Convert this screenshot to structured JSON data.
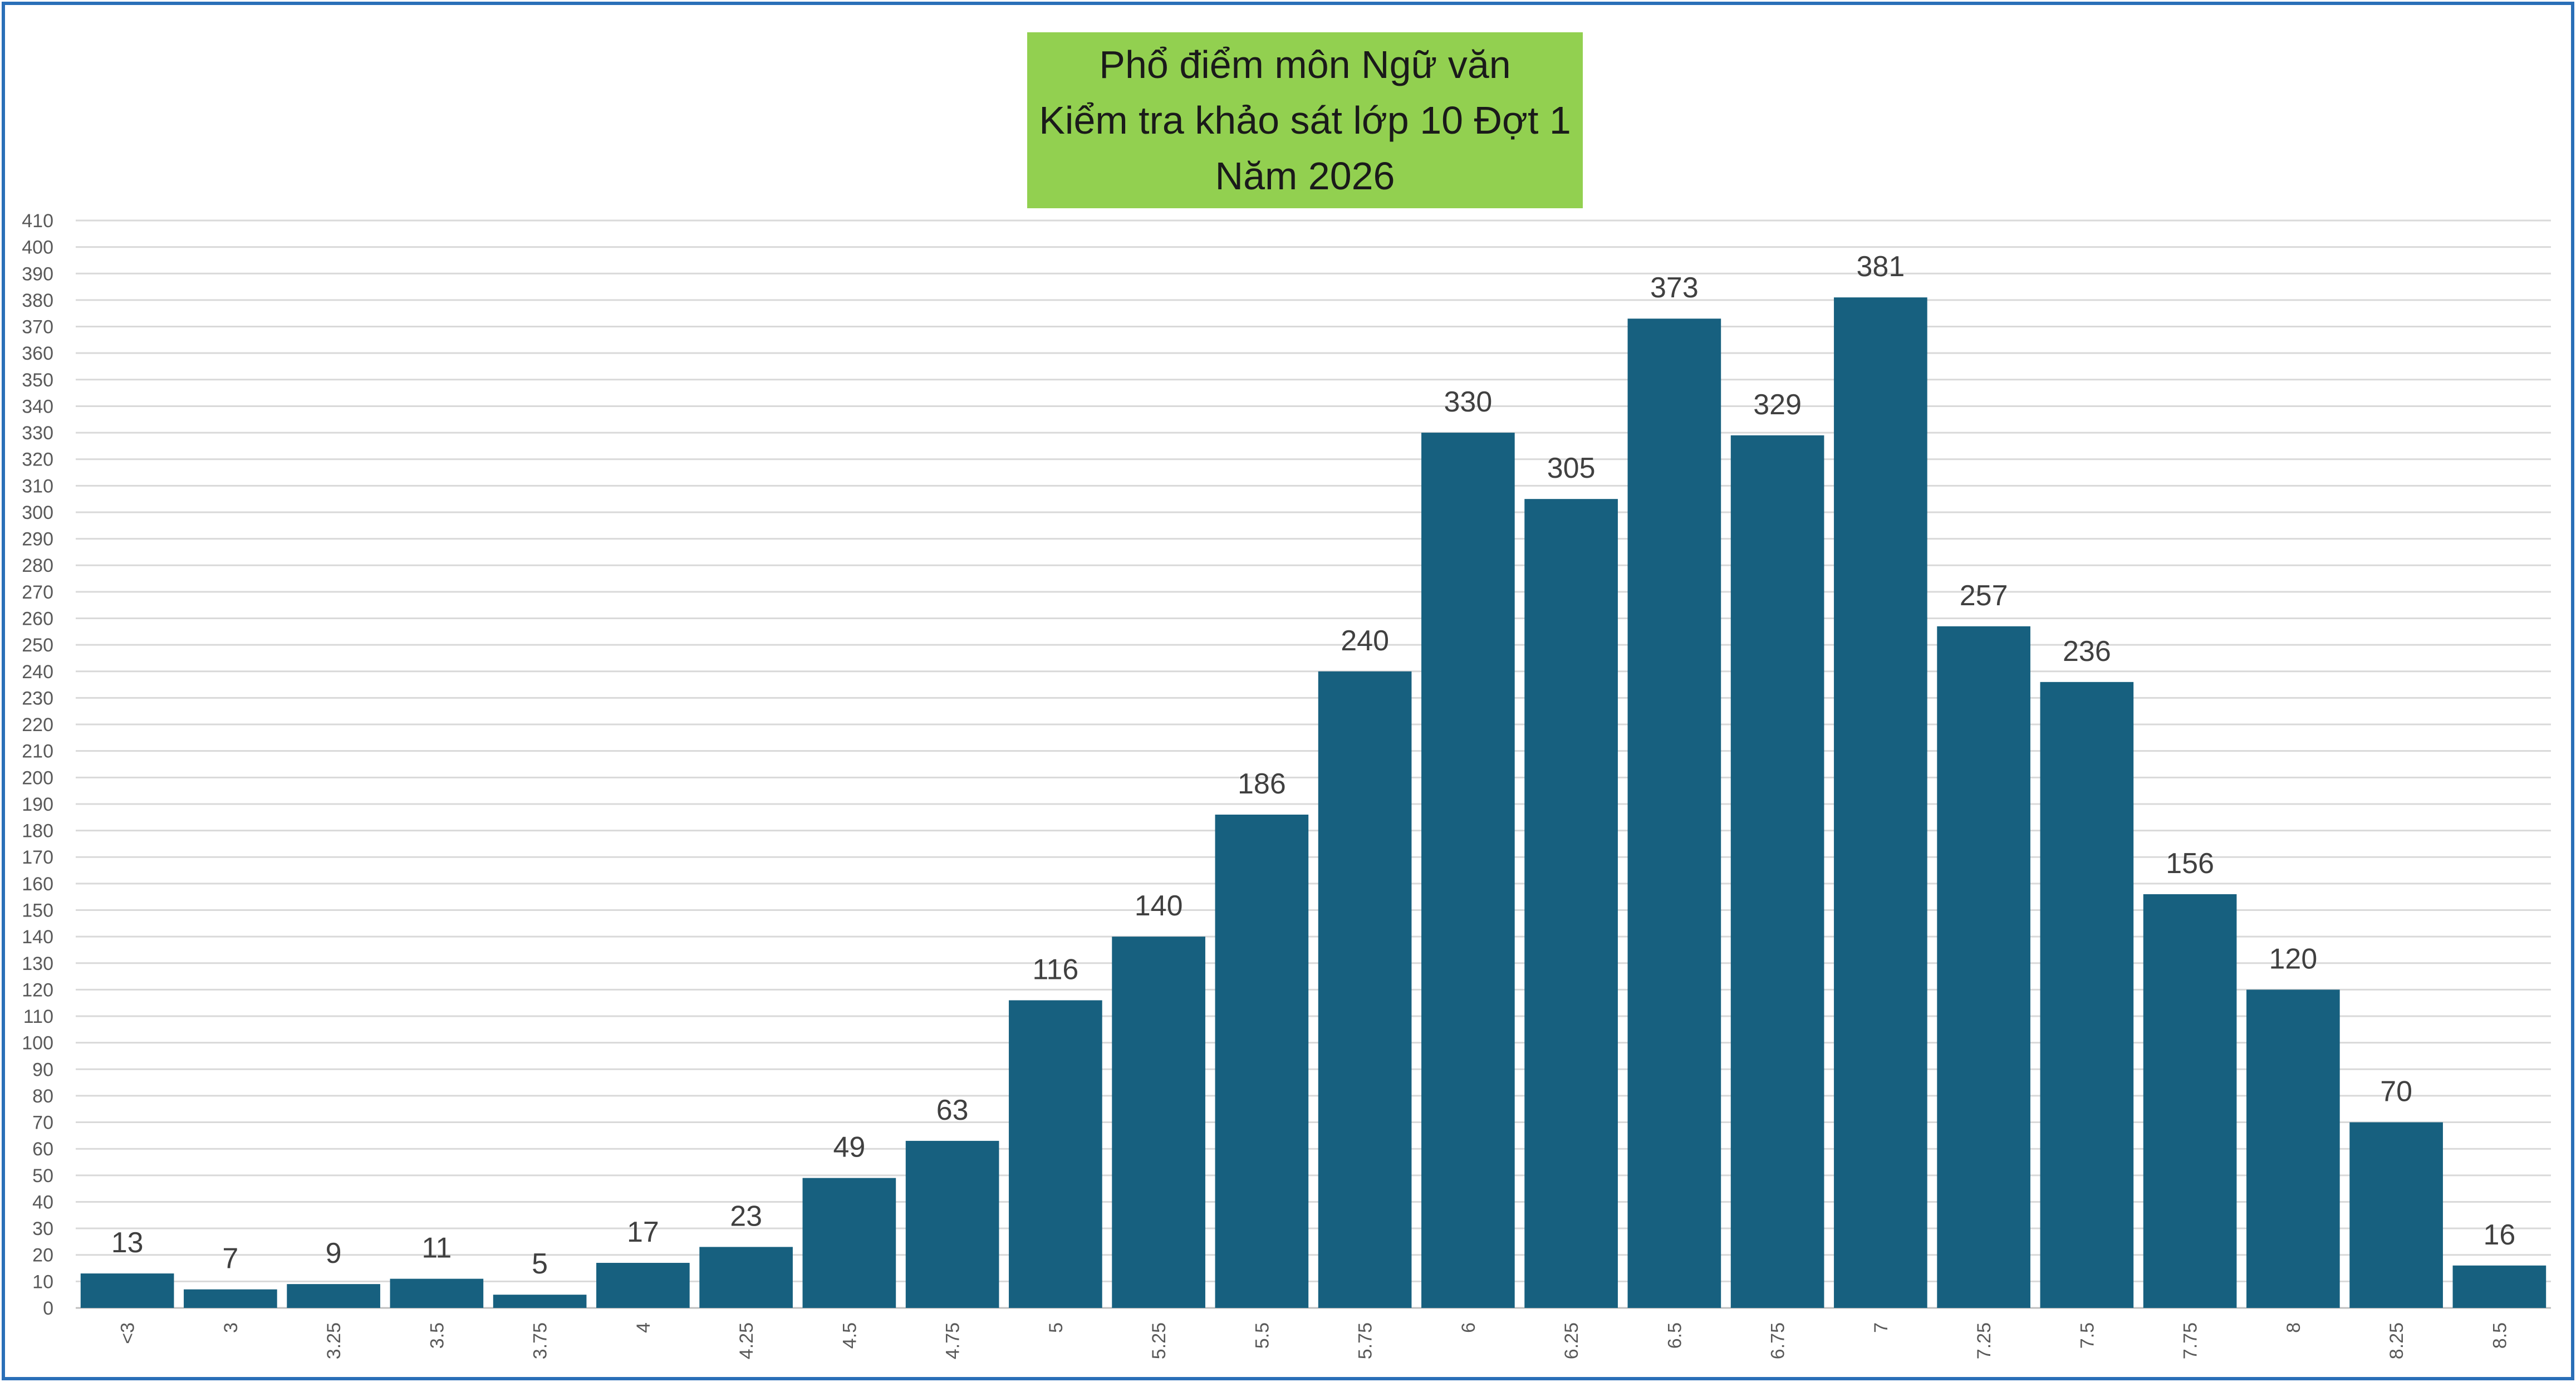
{
  "chart_data": {
    "type": "bar",
    "title_lines": [
      "Phổ điểm môn Ngữ văn",
      "Kiểm tra khảo sát lớp 10 Đợt 1",
      "Năm 2026"
    ],
    "categories": [
      "<3",
      "3",
      "3.25",
      "3.5",
      "3.75",
      "4",
      "4.25",
      "4.5",
      "4.75",
      "5",
      "5.25",
      "5.5",
      "5.75",
      "6",
      "6.25",
      "6.5",
      "6.75",
      "7",
      "7.25",
      "7.5",
      "7.75",
      "8",
      "8.25",
      "8.5"
    ],
    "values": [
      13,
      7,
      9,
      11,
      5,
      17,
      23,
      49,
      63,
      116,
      140,
      186,
      240,
      330,
      305,
      373,
      329,
      381,
      257,
      236,
      156,
      120,
      70,
      16
    ],
    "yticks": [
      0,
      10,
      20,
      30,
      40,
      50,
      60,
      70,
      80,
      90,
      100,
      110,
      120,
      130,
      140,
      150,
      160,
      170,
      180,
      190,
      200,
      210,
      220,
      230,
      240,
      250,
      260,
      270,
      280,
      290,
      300,
      310,
      320,
      330,
      340,
      350,
      360,
      370,
      380,
      390,
      400,
      410
    ],
    "ylim": [
      0,
      410
    ],
    "grid": true,
    "legend": "none",
    "colors": {
      "bar": "#17607f",
      "title_bg": "#92d050",
      "grid": "#d9d9d9",
      "frame": "#2a6fb8",
      "label": "#404040",
      "tick": "#595959"
    }
  }
}
